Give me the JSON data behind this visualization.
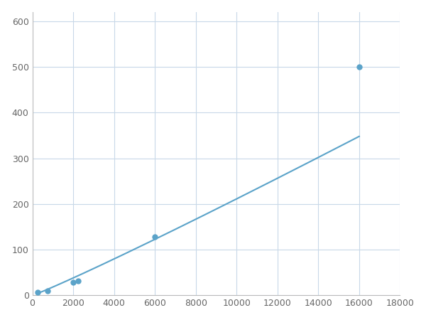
{
  "x_points": [
    250,
    750,
    2000,
    2250,
    6000,
    16000
  ],
  "y_points": [
    7,
    10,
    28,
    32,
    128,
    500
  ],
  "line_color": "#5ba3c9",
  "marker_color": "#5ba3c9",
  "marker_size": 5,
  "line_width": 1.5,
  "xlim": [
    0,
    18000
  ],
  "ylim": [
    0,
    620
  ],
  "xticks": [
    0,
    2000,
    4000,
    6000,
    8000,
    10000,
    12000,
    14000,
    16000,
    18000
  ],
  "yticks": [
    0,
    100,
    200,
    300,
    400,
    500,
    600
  ],
  "grid_color": "#c8d8e8",
  "background_color": "#ffffff",
  "fig_background": "#ffffff"
}
